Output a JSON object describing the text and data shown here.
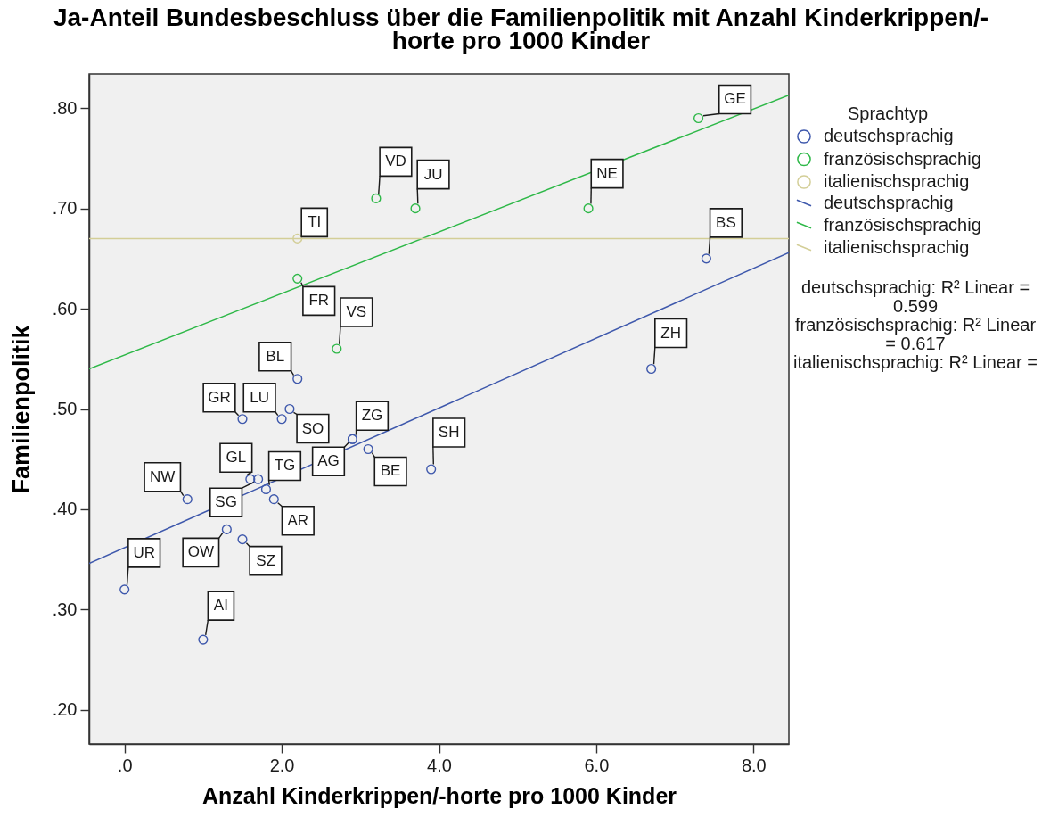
{
  "chart_data": {
    "type": "scatter",
    "title": "Ja-Anteil Bundesbeschluss über die Familienpolitik mit Anzahl Kinderkrippen/-horte pro 1000 Kinder",
    "xlabel": "Anzahl Kinderkrippen/-horte pro 1000 Kinder",
    "ylabel": "Familienpolitik",
    "legend_title": "Sprachtyp",
    "xlim": [
      -0.45,
      8.45
    ],
    "ylim": [
      0.166,
      0.834
    ],
    "xticks": [
      {
        "value": 0,
        "label": ".0"
      },
      {
        "value": 2,
        "label": "2.0"
      },
      {
        "value": 4,
        "label": "4.0"
      },
      {
        "value": 6,
        "label": "6.0"
      },
      {
        "value": 8,
        "label": "8.0"
      }
    ],
    "yticks": [
      {
        "value": 0.2,
        "label": ".20"
      },
      {
        "value": 0.3,
        "label": ".30"
      },
      {
        "value": 0.4,
        "label": ".40"
      },
      {
        "value": 0.5,
        "label": ".50"
      },
      {
        "value": 0.6,
        "label": ".60"
      },
      {
        "value": 0.7,
        "label": ".70"
      },
      {
        "value": 0.8,
        "label": ".80"
      }
    ],
    "legend": "right",
    "marker": "circle",
    "series": [
      {
        "name": "deutschsprachig",
        "type": "scatter",
        "color": "#3e58ac",
        "x": [
          0,
          1.0,
          0.8,
          1.3,
          1.5,
          1.6,
          1.7,
          1.8,
          1.9,
          1.5,
          2.0,
          2.1,
          2.2,
          2.9,
          2.9,
          3.1,
          3.9,
          6.7,
          7.4
        ],
        "values": [
          0.32,
          0.27,
          0.41,
          0.38,
          0.37,
          0.43,
          0.43,
          0.42,
          0.41,
          0.49,
          0.49,
          0.5,
          0.53,
          0.47,
          0.47,
          0.46,
          0.44,
          0.54,
          0.65
        ]
      },
      {
        "name": "französischsprachig",
        "type": "scatter",
        "color": "#2eb848",
        "x": [
          7.3,
          5.9,
          3.2,
          3.7,
          2.2,
          2.7
        ],
        "values": [
          0.79,
          0.7,
          0.71,
          0.7,
          0.63,
          0.56
        ]
      },
      {
        "name": "italienischsprachig",
        "type": "scatter",
        "color": "#d3ce97",
        "x": [
          2.2
        ],
        "values": [
          0.67
        ]
      },
      {
        "name": "deutschsprachig",
        "type": "line",
        "marker": "none",
        "color": "#3e58ac",
        "x": [
          -0.45,
          8.45
        ],
        "values": [
          0.346,
          0.656
        ]
      },
      {
        "name": "französischsprachig",
        "type": "line",
        "marker": "none",
        "color": "#2eb848",
        "x": [
          -0.45,
          8.45
        ],
        "values": [
          0.54,
          0.813
        ]
      },
      {
        "name": "italienischsprachig",
        "type": "line",
        "marker": "none",
        "color": "#d3ce97",
        "x": [
          -0.45,
          8.45
        ],
        "values": [
          0.67,
          0.67
        ]
      }
    ],
    "annotations": [
      {
        "text": "UR",
        "x": 0,
        "y": 0.32
      },
      {
        "text": "AI",
        "x": 1.0,
        "y": 0.27
      },
      {
        "text": "NW",
        "x": 0.8,
        "y": 0.41
      },
      {
        "text": "OW",
        "x": 1.3,
        "y": 0.38
      },
      {
        "text": "SZ",
        "x": 1.5,
        "y": 0.37
      },
      {
        "text": "GL",
        "x": 1.6,
        "y": 0.43
      },
      {
        "text": "SG",
        "x": 1.7,
        "y": 0.43
      },
      {
        "text": "TG",
        "x": 1.8,
        "y": 0.42
      },
      {
        "text": "AR",
        "x": 1.9,
        "y": 0.41
      },
      {
        "text": "GR",
        "x": 1.5,
        "y": 0.49
      },
      {
        "text": "LU",
        "x": 2.0,
        "y": 0.49
      },
      {
        "text": "SO",
        "x": 2.1,
        "y": 0.5
      },
      {
        "text": "BL",
        "x": 2.2,
        "y": 0.53
      },
      {
        "text": "ZG",
        "x": 2.9,
        "y": 0.47
      },
      {
        "text": "AG",
        "x": 2.9,
        "y": 0.47
      },
      {
        "text": "BE",
        "x": 3.1,
        "y": 0.46
      },
      {
        "text": "SH",
        "x": 3.9,
        "y": 0.44
      },
      {
        "text": "ZH",
        "x": 6.7,
        "y": 0.54
      },
      {
        "text": "BS",
        "x": 7.4,
        "y": 0.65
      },
      {
        "text": "GE",
        "x": 7.3,
        "y": 0.79
      },
      {
        "text": "NE",
        "x": 5.9,
        "y": 0.7
      },
      {
        "text": "VD",
        "x": 3.2,
        "y": 0.71
      },
      {
        "text": "JU",
        "x": 3.7,
        "y": 0.7
      },
      {
        "text": "FR",
        "x": 2.2,
        "y": 0.63
      },
      {
        "text": "VS",
        "x": 2.7,
        "y": 0.56
      },
      {
        "text": "TI",
        "x": 2.2,
        "y": 0.67
      },
      "deutschsprachig: R² Linear = 0.599",
      "französischsprachig: R² Linear = 0.617",
      "italienischsprachig: R² Linear ="
    ]
  }
}
